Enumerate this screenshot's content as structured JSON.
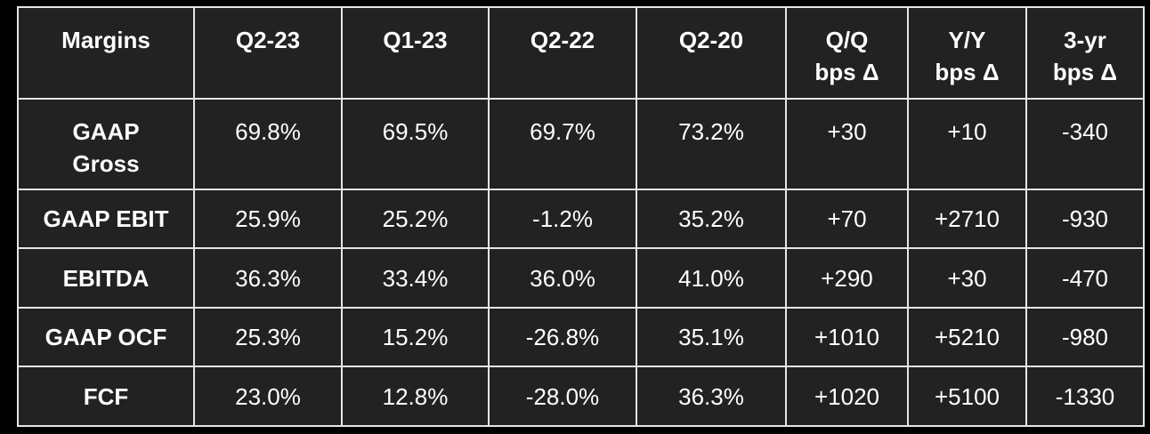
{
  "table": {
    "header": [
      "Margins",
      "Q2-23",
      "Q1-23",
      "Q2-22",
      "Q2-20",
      "Q/Q\nbps Δ",
      "Y/Y\nbps Δ",
      "3-yr\nbps Δ"
    ],
    "rows": [
      [
        "GAAP\nGross",
        "69.8%",
        "69.5%",
        "69.7%",
        "73.2%",
        "+30",
        "+10",
        "-340"
      ],
      [
        "GAAP EBIT",
        "25.9%",
        "25.2%",
        "-1.2%",
        "35.2%",
        "+70",
        "+2710",
        "-930"
      ],
      [
        "EBITDA",
        "36.3%",
        "33.4%",
        "36.0%",
        "41.0%",
        "+290",
        "+30",
        "-470"
      ],
      [
        "GAAP OCF",
        "25.3%",
        "15.2%",
        "-26.8%",
        "35.1%",
        "+1010",
        "+5210",
        "-980"
      ],
      [
        "FCF",
        "23.0%",
        "12.8%",
        "-28.0%",
        "36.3%",
        "+1020",
        "+5100",
        "-1330"
      ]
    ]
  }
}
